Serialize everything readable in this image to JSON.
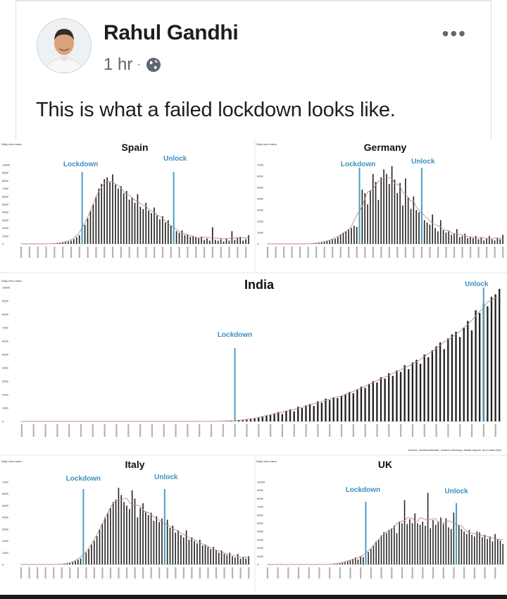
{
  "post": {
    "author": "Rahul Gandhi",
    "time": "1 hr",
    "separator": "·",
    "privacy_icon": "globe-icon",
    "more_icon": "more-horizontal-icon",
    "more_label": "•••",
    "text": "This is what a failed lockdown looks like."
  },
  "colors": {
    "bar": "#222222",
    "event_line": "#4a9ec9",
    "event_label": "#3d8fbf",
    "avg_line": "#c08a80"
  },
  "chart_data": [
    {
      "type": "bar",
      "title": "Spain",
      "ylabel": "Daily new cases",
      "yticks": [
        "0",
        "1000",
        "2000",
        "3000",
        "4000",
        "5000",
        "6000",
        "7000",
        "8000",
        "9000",
        "10000"
      ],
      "ylim": [
        0,
        10000
      ],
      "events": [
        {
          "label": "Lockdown",
          "index": 22
        },
        {
          "label": "Unlock",
          "index": 55
        }
      ],
      "values": [
        0,
        0,
        0,
        0,
        0,
        0,
        0,
        0,
        0,
        0,
        0,
        0,
        50,
        80,
        120,
        160,
        230,
        280,
        400,
        600,
        850,
        1100,
        1700,
        2400,
        3200,
        4200,
        5000,
        6000,
        7000,
        7600,
        8200,
        8400,
        7800,
        8800,
        7500,
        7000,
        7300,
        6400,
        6700,
        5600,
        5900,
        5200,
        6300,
        4700,
        4400,
        5200,
        4200,
        3900,
        4600,
        3600,
        3100,
        3500,
        2700,
        3000,
        2300,
        1700,
        1600,
        1400,
        1700,
        1100,
        1200,
        900,
        1000,
        800,
        700,
        900,
        500,
        700,
        400,
        2100,
        500,
        400,
        600,
        300,
        700,
        400,
        1600,
        500,
        800,
        900,
        400,
        600,
        1100
      ]
    },
    {
      "type": "bar",
      "title": "Germany",
      "ylabel": "Daily new cases",
      "yticks": [
        "0",
        "1000",
        "2000",
        "3000",
        "4000",
        "5000",
        "6000",
        "7000"
      ],
      "ylim": [
        0,
        7000
      ],
      "events": [
        {
          "label": "Lockdown",
          "index": 34
        },
        {
          "label": "Unlock",
          "index": 57
        }
      ],
      "values": [
        0,
        0,
        0,
        0,
        0,
        0,
        0,
        0,
        0,
        0,
        0,
        0,
        0,
        0,
        0,
        0,
        20,
        30,
        50,
        80,
        120,
        200,
        250,
        300,
        400,
        450,
        600,
        800,
        1000,
        1100,
        1300,
        1400,
        1600,
        1500,
        2800,
        4800,
        4500,
        3500,
        4700,
        6200,
        5500,
        3900,
        5900,
        6600,
        6200,
        5300,
        6900,
        5700,
        4500,
        5400,
        3400,
        5800,
        4100,
        3100,
        4200,
        3000,
        2800,
        3500,
        2100,
        1900,
        1700,
        2600,
        1400,
        1100,
        2100,
        1200,
        1000,
        1100,
        800,
        900,
        1300,
        600,
        700,
        900,
        500,
        600,
        500,
        700,
        400,
        600,
        300,
        500,
        700,
        400,
        300,
        500,
        400,
        800
      ]
    },
    {
      "type": "bar",
      "title": "India",
      "ylabel": "Daily new cases",
      "yticks": [
        "0",
        "1000",
        "2000",
        "3000",
        "4000",
        "5000",
        "6000",
        "7000",
        "8000",
        "9000",
        "10000"
      ],
      "ylim": [
        0,
        10000
      ],
      "events": [
        {
          "label": "Lockdown",
          "index": 54
        },
        {
          "label": "Unlock",
          "index": 117
        }
      ],
      "source": "Source: OurWorldInData, Oxford University, Media reports, ALO Data Dept",
      "values": [
        0,
        0,
        0,
        0,
        0,
        0,
        0,
        0,
        0,
        0,
        0,
        0,
        0,
        0,
        0,
        0,
        0,
        0,
        0,
        0,
        0,
        0,
        0,
        0,
        0,
        0,
        0,
        0,
        0,
        0,
        0,
        0,
        0,
        0,
        0,
        0,
        0,
        0,
        0,
        0,
        0,
        0,
        0,
        0,
        0,
        0,
        5,
        5,
        10,
        10,
        15,
        20,
        25,
        30,
        60,
        80,
        100,
        140,
        180,
        220,
        300,
        350,
        420,
        500,
        600,
        700,
        550,
        800,
        900,
        750,
        1100,
        1000,
        1200,
        1300,
        1150,
        1500,
        1400,
        1700,
        1600,
        1800,
        1750,
        1900,
        2000,
        2200,
        2100,
        2400,
        2600,
        2500,
        2800,
        3000,
        2900,
        3300,
        3200,
        3600,
        3400,
        3800,
        3700,
        4200,
        3900,
        4400,
        4600,
        4300,
        5000,
        4800,
        5300,
        5600,
        5900,
        5400,
        6200,
        6500,
        6700,
        6300,
        7000,
        7500,
        6800,
        8300,
        8100,
        8800,
        8600,
        9300,
        9500,
        9900
      ]
    },
    {
      "type": "bar",
      "title": "Italy",
      "ylabel": "Daily new cases",
      "yticks": [
        "0",
        "1000",
        "2000",
        "3000",
        "4000",
        "5000",
        "6000",
        "7000"
      ],
      "ylim": [
        0,
        7000
      ],
      "events": [
        {
          "label": "Lockdown",
          "index": 23
        },
        {
          "label": "Unlock",
          "index": 53
        }
      ],
      "values": [
        0,
        0,
        0,
        0,
        0,
        0,
        0,
        0,
        0,
        0,
        0,
        0,
        0,
        0,
        0,
        0,
        50,
        80,
        120,
        200,
        300,
        400,
        500,
        700,
        1000,
        1300,
        1700,
        2000,
        2400,
        3000,
        3500,
        4000,
        4400,
        4800,
        5300,
        5500,
        6500,
        5900,
        5300,
        5000,
        4700,
        6300,
        5600,
        4000,
        4800,
        5200,
        4500,
        4200,
        4400,
        3700,
        4100,
        3600,
        3900,
        2900,
        3800,
        3100,
        3300,
        2700,
        2900,
        2500,
        2300,
        2900,
        2100,
        2300,
        2000,
        1800,
        2100,
        1600,
        1700,
        1500,
        1300,
        1500,
        1200,
        1000,
        1200,
        900,
        800,
        1000,
        700,
        600,
        900,
        500,
        600,
        500,
        700
      ]
    },
    {
      "type": "bar",
      "title": "UK",
      "ylabel": "Daily new cases",
      "yticks": [
        "0",
        "1000",
        "2000",
        "3000",
        "4000",
        "5000",
        "6000",
        "7000",
        "8000",
        "9000",
        "10000"
      ],
      "ylim": [
        0,
        10000
      ],
      "events": [
        {
          "label": "Lockdown",
          "index": 38
        },
        {
          "label": "Unlock",
          "index": 73
        }
      ],
      "values": [
        0,
        0,
        0,
        0,
        0,
        0,
        0,
        0,
        0,
        0,
        0,
        0,
        0,
        0,
        0,
        0,
        0,
        0,
        0,
        0,
        0,
        0,
        0,
        10,
        20,
        30,
        50,
        80,
        120,
        200,
        300,
        400,
        500,
        700,
        850,
        600,
        1000,
        900,
        1200,
        1500,
        1900,
        2300,
        2800,
        3000,
        3500,
        3900,
        3800,
        4200,
        4400,
        4700,
        3800,
        5200,
        5000,
        7800,
        4900,
        5500,
        5000,
        6200,
        5000,
        4800,
        5200,
        4700,
        8700,
        4400,
        5400,
        4800,
        5100,
        5700,
        4900,
        5600,
        4500,
        4300,
        6300,
        5700,
        4800,
        4300,
        4000,
        3700,
        4200,
        3600,
        3400,
        4000,
        3900,
        3300,
        3600,
        3100,
        3400,
        2800,
        3700,
        3100,
        2900,
        2500
      ]
    }
  ]
}
